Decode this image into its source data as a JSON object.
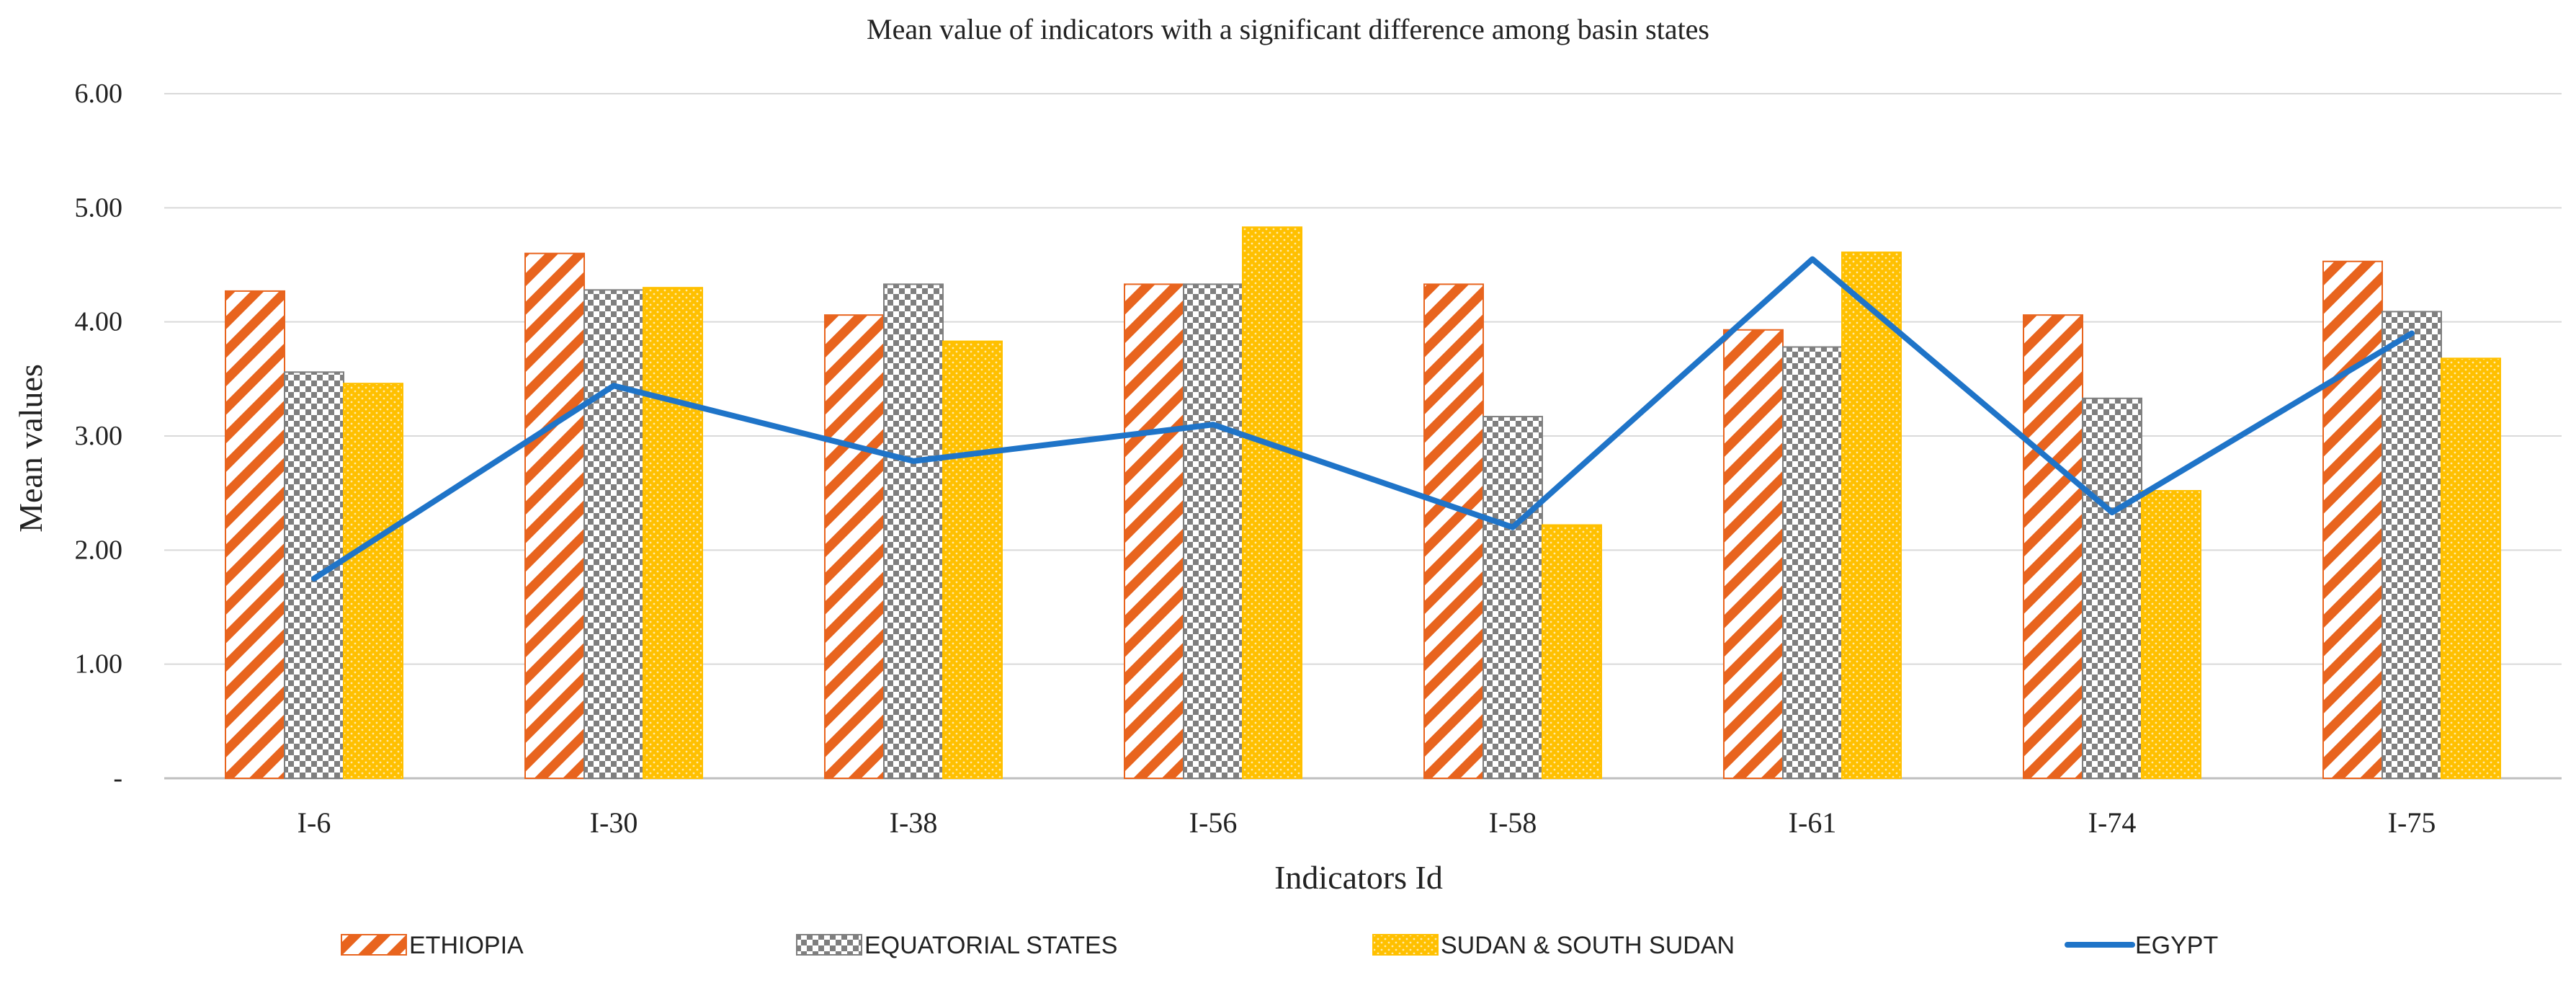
{
  "chart_data": {
    "type": "bar",
    "title": "Mean value of indicators with a significant difference among basin states",
    "xlabel": "Indicators Id",
    "ylabel": "Mean values",
    "ylim": [
      0,
      6
    ],
    "yticks": [
      0,
      1,
      2,
      3,
      4,
      5,
      6
    ],
    "ytick_labels": [
      "-",
      "1.00",
      "2.00",
      "3.00",
      "4.00",
      "5.00",
      "6.00"
    ],
    "grid": true,
    "legend_position": "bottom",
    "categories": [
      "I-6",
      "I-30",
      "I-38",
      "I-56",
      "I-58",
      "I-61",
      "I-74",
      "I-75"
    ],
    "series": [
      {
        "name": "ETHIOPIA",
        "kind": "bar",
        "pattern": "diagonal-hatch",
        "color": "#E8641E",
        "values": [
          4.27,
          4.6,
          4.06,
          4.33,
          4.33,
          3.93,
          4.06,
          4.53
        ]
      },
      {
        "name": "EQUATORIAL STATES",
        "kind": "bar",
        "pattern": "checker",
        "color": "#7F7F7F",
        "values": [
          3.56,
          4.28,
          4.33,
          4.33,
          3.17,
          3.78,
          3.33,
          4.09
        ]
      },
      {
        "name": "SUDAN & SOUTH SUDAN",
        "kind": "bar",
        "pattern": "dots",
        "color": "#FFC000",
        "values": [
          3.46,
          4.3,
          3.83,
          4.83,
          2.22,
          4.61,
          2.52,
          3.68
        ]
      },
      {
        "name": "EGYPT",
        "kind": "line",
        "color": "#1F74C8",
        "values": [
          1.75,
          3.44,
          2.78,
          3.1,
          2.2,
          4.55,
          2.33,
          3.9
        ]
      }
    ]
  }
}
